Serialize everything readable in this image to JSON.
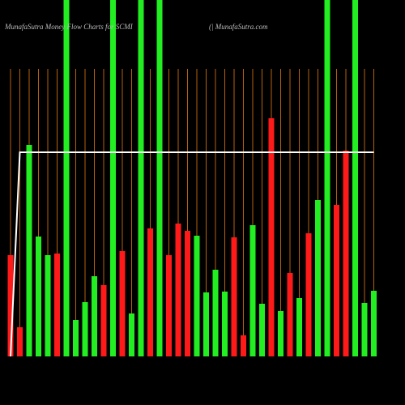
{
  "chart_data": {
    "type": "bar",
    "title": "MunafaSutra  Money Flow  Charts for SCMI",
    "subtitle": "(| MunafaSutra.com",
    "categories": [
      null,
      null,
      null,
      null,
      null,
      null,
      null,
      null,
      null,
      null,
      null,
      null,
      null,
      null,
      null,
      null,
      null,
      null,
      null,
      null,
      null,
      null,
      null,
      null,
      null,
      null,
      null,
      null,
      null,
      null,
      null,
      null,
      null,
      null,
      null,
      null,
      null,
      null,
      null,
      null
    ],
    "ylim": [
      0,
      440
    ],
    "series": [
      {
        "type": "bar",
        "values": [
          125,
          36,
          261,
          148,
          125,
          127,
          440,
          45,
          67,
          99,
          88,
          440,
          130,
          53,
          440,
          158,
          440,
          125,
          164,
          155,
          149,
          79,
          107,
          80,
          147,
          26,
          162,
          65,
          294,
          56,
          103,
          72,
          152,
          193,
          440,
          187,
          254,
          440,
          66,
          81
        ],
        "colors": [
          "#ff1a1a",
          "#ff1a1a",
          "#22ee22",
          "#22ee22",
          "#22ee22",
          "#ff1a1a",
          "#22ee22",
          "#22ee22",
          "#22ee22",
          "#22ee22",
          "#ff1a1a",
          "#22ee22",
          "#ff1a1a",
          "#22ee22",
          "#22ee22",
          "#ff1a1a",
          "#22ee22",
          "#ff1a1a",
          "#ff1a1a",
          "#ff1a1a",
          "#22ee22",
          "#22ee22",
          "#22ee22",
          "#22ee22",
          "#ff1a1a",
          "#ff1a1a",
          "#22ee22",
          "#22ee22",
          "#ff1a1a",
          "#22ee22",
          "#ff1a1a",
          "#22ee22",
          "#ff1a1a",
          "#22ee22",
          "#22ee22",
          "#ff1a1a",
          "#ff1a1a",
          "#22ee22",
          "#22ee22",
          "#22ee22"
        ]
      },
      {
        "type": "line",
        "color": "#ffffff",
        "values": [
          0,
          252,
          252,
          252,
          252,
          252,
          252,
          252,
          252,
          252,
          252,
          252,
          252,
          252,
          252,
          252,
          252,
          252,
          252,
          252,
          252,
          252,
          252,
          252,
          252,
          252,
          252,
          252,
          252,
          252,
          252,
          252,
          252,
          252,
          252,
          252,
          252,
          252,
          252,
          252
        ]
      }
    ],
    "category_line_color": "#b8600c"
  }
}
